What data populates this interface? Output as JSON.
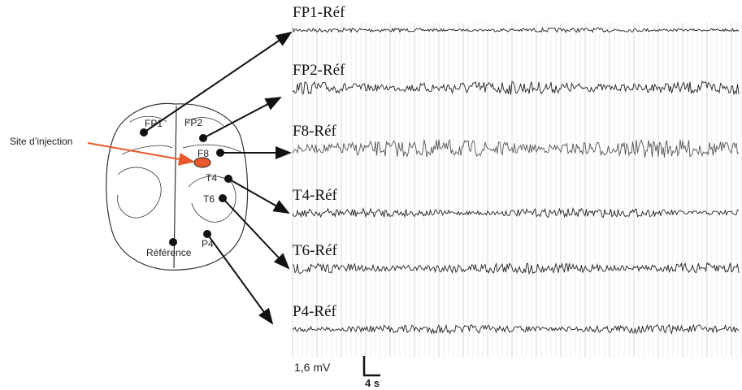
{
  "brain": {
    "injection_site": "Site d’injection",
    "reference": "Référence",
    "electrodes": [
      {
        "label": "FP1"
      },
      {
        "label": "FP2"
      },
      {
        "label": "F8"
      },
      {
        "label": "T4"
      },
      {
        "label": "T6"
      },
      {
        "label": "P4"
      }
    ]
  },
  "traces": [
    {
      "label": "FP1-Réf"
    },
    {
      "label": "FP2-Réf"
    },
    {
      "label": "F8-Réf"
    },
    {
      "label": "T4-Réf"
    },
    {
      "label": "T6-Réf"
    },
    {
      "label": "P4-Réf"
    }
  ],
  "scale": {
    "amplitude": "1,6 mV",
    "time": "4 s"
  }
}
